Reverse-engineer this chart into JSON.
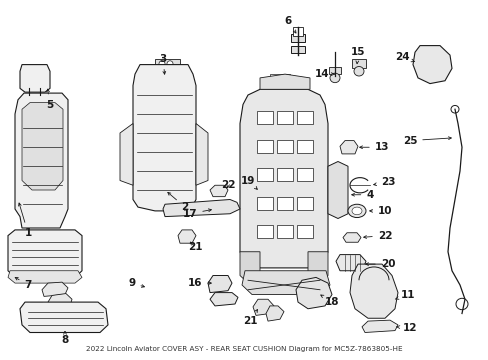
{
  "bg_color": "#ffffff",
  "line_color": "#1a1a1a",
  "figsize": [
    4.89,
    3.6
  ],
  "dpi": 100,
  "caption": "2022 Lincoln Aviator COVER ASY - REAR SEAT CUSHION Diagram for MC5Z-7863805-HE"
}
